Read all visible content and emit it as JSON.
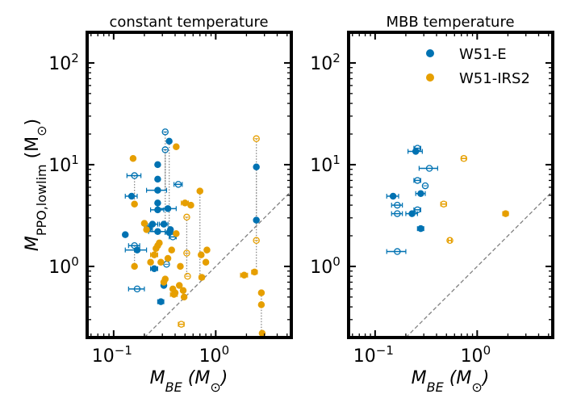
{
  "chart_data": [
    {
      "type": "scatter",
      "title": "constant temperature",
      "xlabel": "M_BE (M⊙)",
      "ylabel": "M_PPO,lowlim (M⊙)",
      "xscale": "log",
      "yscale": "log",
      "xlim": [
        0.055,
        5.5
      ],
      "ylim": [
        0.2,
        200
      ],
      "xticks": [
        "10^-1",
        "10^0"
      ],
      "yticks": [
        "10^0",
        "10^1",
        "10^2"
      ],
      "reference_line": "y = x (dashed)",
      "series": [
        {
          "name": "W51-E",
          "color": "#0072B2",
          "points": [
            {
              "x": 0.13,
              "y": 2.05,
              "xerr": 0
            },
            {
              "x": 0.15,
              "y": 4.9,
              "xerr": 0.02
            },
            {
              "x": 0.16,
              "y": 7.8,
              "xerr": 0.025,
              "open": true,
              "link": 4.0
            },
            {
              "x": 0.16,
              "y": 1.6,
              "xerr": 0.02,
              "open": true,
              "link": 1.0
            },
            {
              "x": 0.17,
              "y": 1.45,
              "xerr": 0.04
            },
            {
              "x": 0.17,
              "y": 0.6,
              "xerr": 0.03,
              "open": true
            },
            {
              "x": 0.22,
              "y": 2.35,
              "xerr": 0.02
            },
            {
              "x": 0.24,
              "y": 2.6,
              "xerr": 0.03
            },
            {
              "x": 0.25,
              "y": 0.95,
              "xerr": 0.02
            },
            {
              "x": 0.27,
              "y": 10.0,
              "xerr": 0
            },
            {
              "x": 0.27,
              "y": 7.2,
              "xerr": 0
            },
            {
              "x": 0.27,
              "y": 5.6,
              "xerr": 0.06
            },
            {
              "x": 0.27,
              "y": 4.2,
              "xerr": 0
            },
            {
              "x": 0.27,
              "y": 3.6,
              "xerr": 0.04
            },
            {
              "x": 0.27,
              "y": 2.2,
              "xerr": 0.05
            },
            {
              "x": 0.29,
              "y": 0.45,
              "xerr": 0.02
            },
            {
              "x": 0.31,
              "y": 2.6,
              "xerr": 0.03
            },
            {
              "x": 0.31,
              "y": 0.65,
              "xerr": 0
            },
            {
              "x": 0.32,
              "y": 21.0,
              "xerr": 0,
              "open": true,
              "link": 5.6
            },
            {
              "x": 0.32,
              "y": 14.0,
              "xerr": 0,
              "open": true,
              "link": 2.2
            },
            {
              "x": 0.33,
              "y": 1.05,
              "xerr": 0,
              "open": true
            },
            {
              "x": 0.34,
              "y": 3.7,
              "xerr": 0.07
            },
            {
              "x": 0.35,
              "y": 17.0,
              "xerr": 0,
              "link": 2.0
            },
            {
              "x": 0.35,
              "y": 2.15,
              "xerr": 0.03
            },
            {
              "x": 0.36,
              "y": 2.3,
              "xerr": 0
            },
            {
              "x": 0.38,
              "y": 1.95,
              "xerr": 0.03,
              "open": true
            },
            {
              "x": 0.43,
              "y": 6.4,
              "xerr": 0.04,
              "open": true
            },
            {
              "x": 2.5,
              "y": 9.5,
              "xerr": 0,
              "link": 2.8
            },
            {
              "x": 2.5,
              "y": 2.85,
              "xerr": 0
            }
          ]
        },
        {
          "name": "W51-IRS2",
          "color": "#E69F00",
          "points": [
            {
              "x": 0.155,
              "y": 11.5,
              "xerr": 0
            },
            {
              "x": 0.16,
              "y": 4.1,
              "xerr": 0
            },
            {
              "x": 0.16,
              "y": 1.0,
              "xerr": 0
            },
            {
              "x": 0.2,
              "y": 2.65,
              "xerr": 0
            },
            {
              "x": 0.21,
              "y": 2.3,
              "xerr": 0
            },
            {
              "x": 0.23,
              "y": 1.1,
              "xerr": 0
            },
            {
              "x": 0.25,
              "y": 1.3,
              "xerr": 0.02
            },
            {
              "x": 0.26,
              "y": 1.5,
              "xerr": 0
            },
            {
              "x": 0.27,
              "y": 1.6,
              "xerr": 0
            },
            {
              "x": 0.28,
              "y": 1.7,
              "xerr": 0
            },
            {
              "x": 0.29,
              "y": 1.1,
              "xerr": 0
            },
            {
              "x": 0.31,
              "y": 0.7,
              "xerr": 0
            },
            {
              "x": 0.32,
              "y": 0.75,
              "xerr": 0
            },
            {
              "x": 0.34,
              "y": 1.2,
              "xerr": 0
            },
            {
              "x": 0.37,
              "y": 1.45,
              "xerr": 0
            },
            {
              "x": 0.38,
              "y": 0.6,
              "xerr": 0
            },
            {
              "x": 0.39,
              "y": 0.53,
              "xerr": 0.03
            },
            {
              "x": 0.4,
              "y": 0.55,
              "xerr": 0
            },
            {
              "x": 0.41,
              "y": 15.0,
              "xerr": 0
            },
            {
              "x": 0.41,
              "y": 2.1,
              "xerr": 0
            },
            {
              "x": 0.44,
              "y": 0.65,
              "xerr": 0
            },
            {
              "x": 0.45,
              "y": 1.0,
              "xerr": 0
            },
            {
              "x": 0.46,
              "y": 0.27,
              "xerr": 0.03,
              "open": true
            },
            {
              "x": 0.48,
              "y": 0.58,
              "xerr": 0
            },
            {
              "x": 0.49,
              "y": 0.5,
              "xerr": 0
            },
            {
              "x": 0.5,
              "y": 4.2,
              "xerr": 0.04
            },
            {
              "x": 0.52,
              "y": 3.05,
              "xerr": 0,
              "open": true,
              "link": 0.8
            },
            {
              "x": 0.52,
              "y": 1.35,
              "xerr": 0,
              "open": true
            },
            {
              "x": 0.53,
              "y": 0.8,
              "xerr": 0,
              "open": true
            },
            {
              "x": 0.57,
              "y": 4.0,
              "xerr": 0
            },
            {
              "x": 0.7,
              "y": 5.5,
              "xerr": 0,
              "link": 0.78
            },
            {
              "x": 0.72,
              "y": 1.3,
              "xerr": 0
            },
            {
              "x": 0.73,
              "y": 0.78,
              "xerr": 0.04
            },
            {
              "x": 0.8,
              "y": 1.1,
              "xerr": 0
            },
            {
              "x": 0.82,
              "y": 1.45,
              "xerr": 0
            },
            {
              "x": 1.9,
              "y": 0.82,
              "xerr": 0.15
            },
            {
              "x": 2.4,
              "y": 0.88,
              "xerr": 0.15
            },
            {
              "x": 2.5,
              "y": 18.0,
              "xerr": 0,
              "open": true,
              "link": 0.95
            },
            {
              "x": 2.5,
              "y": 1.8,
              "xerr": 0,
              "open": true
            },
            {
              "x": 2.8,
              "y": 0.55,
              "xerr": 0,
              "link": 0.22
            },
            {
              "x": 2.8,
              "y": 0.42,
              "xerr": 0
            },
            {
              "x": 2.85,
              "y": 0.22,
              "xerr": 0
            }
          ]
        }
      ]
    },
    {
      "type": "scatter",
      "title": "MBB temperature",
      "xlabel": "M_BE (M⊙)",
      "xscale": "log",
      "yscale": "log",
      "xlim": [
        0.055,
        5.5
      ],
      "ylim": [
        0.2,
        200
      ],
      "xticks": [
        "10^-1",
        "10^0"
      ],
      "yticks": [
        "10^0",
        "10^1",
        "10^2"
      ],
      "reference_line": "y = x (dashed)",
      "legend": {
        "placement": "upper-right",
        "items": [
          "W51-E",
          "W51-IRS2"
        ]
      },
      "series": [
        {
          "name": "W51-E",
          "color": "#0072B2",
          "points": [
            {
              "x": 0.15,
              "y": 4.9,
              "xerr": 0.02
            },
            {
              "x": 0.165,
              "y": 4.0,
              "xerr": 0.02,
              "open": true
            },
            {
              "x": 0.165,
              "y": 3.3,
              "xerr": 0.02,
              "open": true
            },
            {
              "x": 0.165,
              "y": 1.4,
              "xerr": 0.035,
              "open": true
            },
            {
              "x": 0.23,
              "y": 3.3,
              "xerr": 0.03
            },
            {
              "x": 0.25,
              "y": 13.5,
              "xerr": 0.04
            },
            {
              "x": 0.26,
              "y": 14.5,
              "xerr": 0.02,
              "open": true
            },
            {
              "x": 0.26,
              "y": 7.0,
              "xerr": 0.02,
              "open": true
            },
            {
              "x": 0.26,
              "y": 3.6,
              "xerr": 0.02,
              "open": true
            },
            {
              "x": 0.28,
              "y": 5.2,
              "xerr": 0.03
            },
            {
              "x": 0.28,
              "y": 2.35,
              "xerr": 0.02
            },
            {
              "x": 0.31,
              "y": 6.2,
              "xerr": 0,
              "open": true
            },
            {
              "x": 0.34,
              "y": 9.2,
              "xerr": 0.07,
              "open": true
            }
          ]
        },
        {
          "name": "W51-IRS2",
          "color": "#E69F00",
          "points": [
            {
              "x": 0.47,
              "y": 4.1,
              "xerr": 0.03,
              "open": true
            },
            {
              "x": 0.54,
              "y": 1.8,
              "xerr": 0.02,
              "open": true
            },
            {
              "x": 0.74,
              "y": 11.5,
              "xerr": 0.04,
              "open": true
            },
            {
              "x": 1.9,
              "y": 3.3,
              "xerr": 0.12
            }
          ]
        }
      ]
    }
  ]
}
